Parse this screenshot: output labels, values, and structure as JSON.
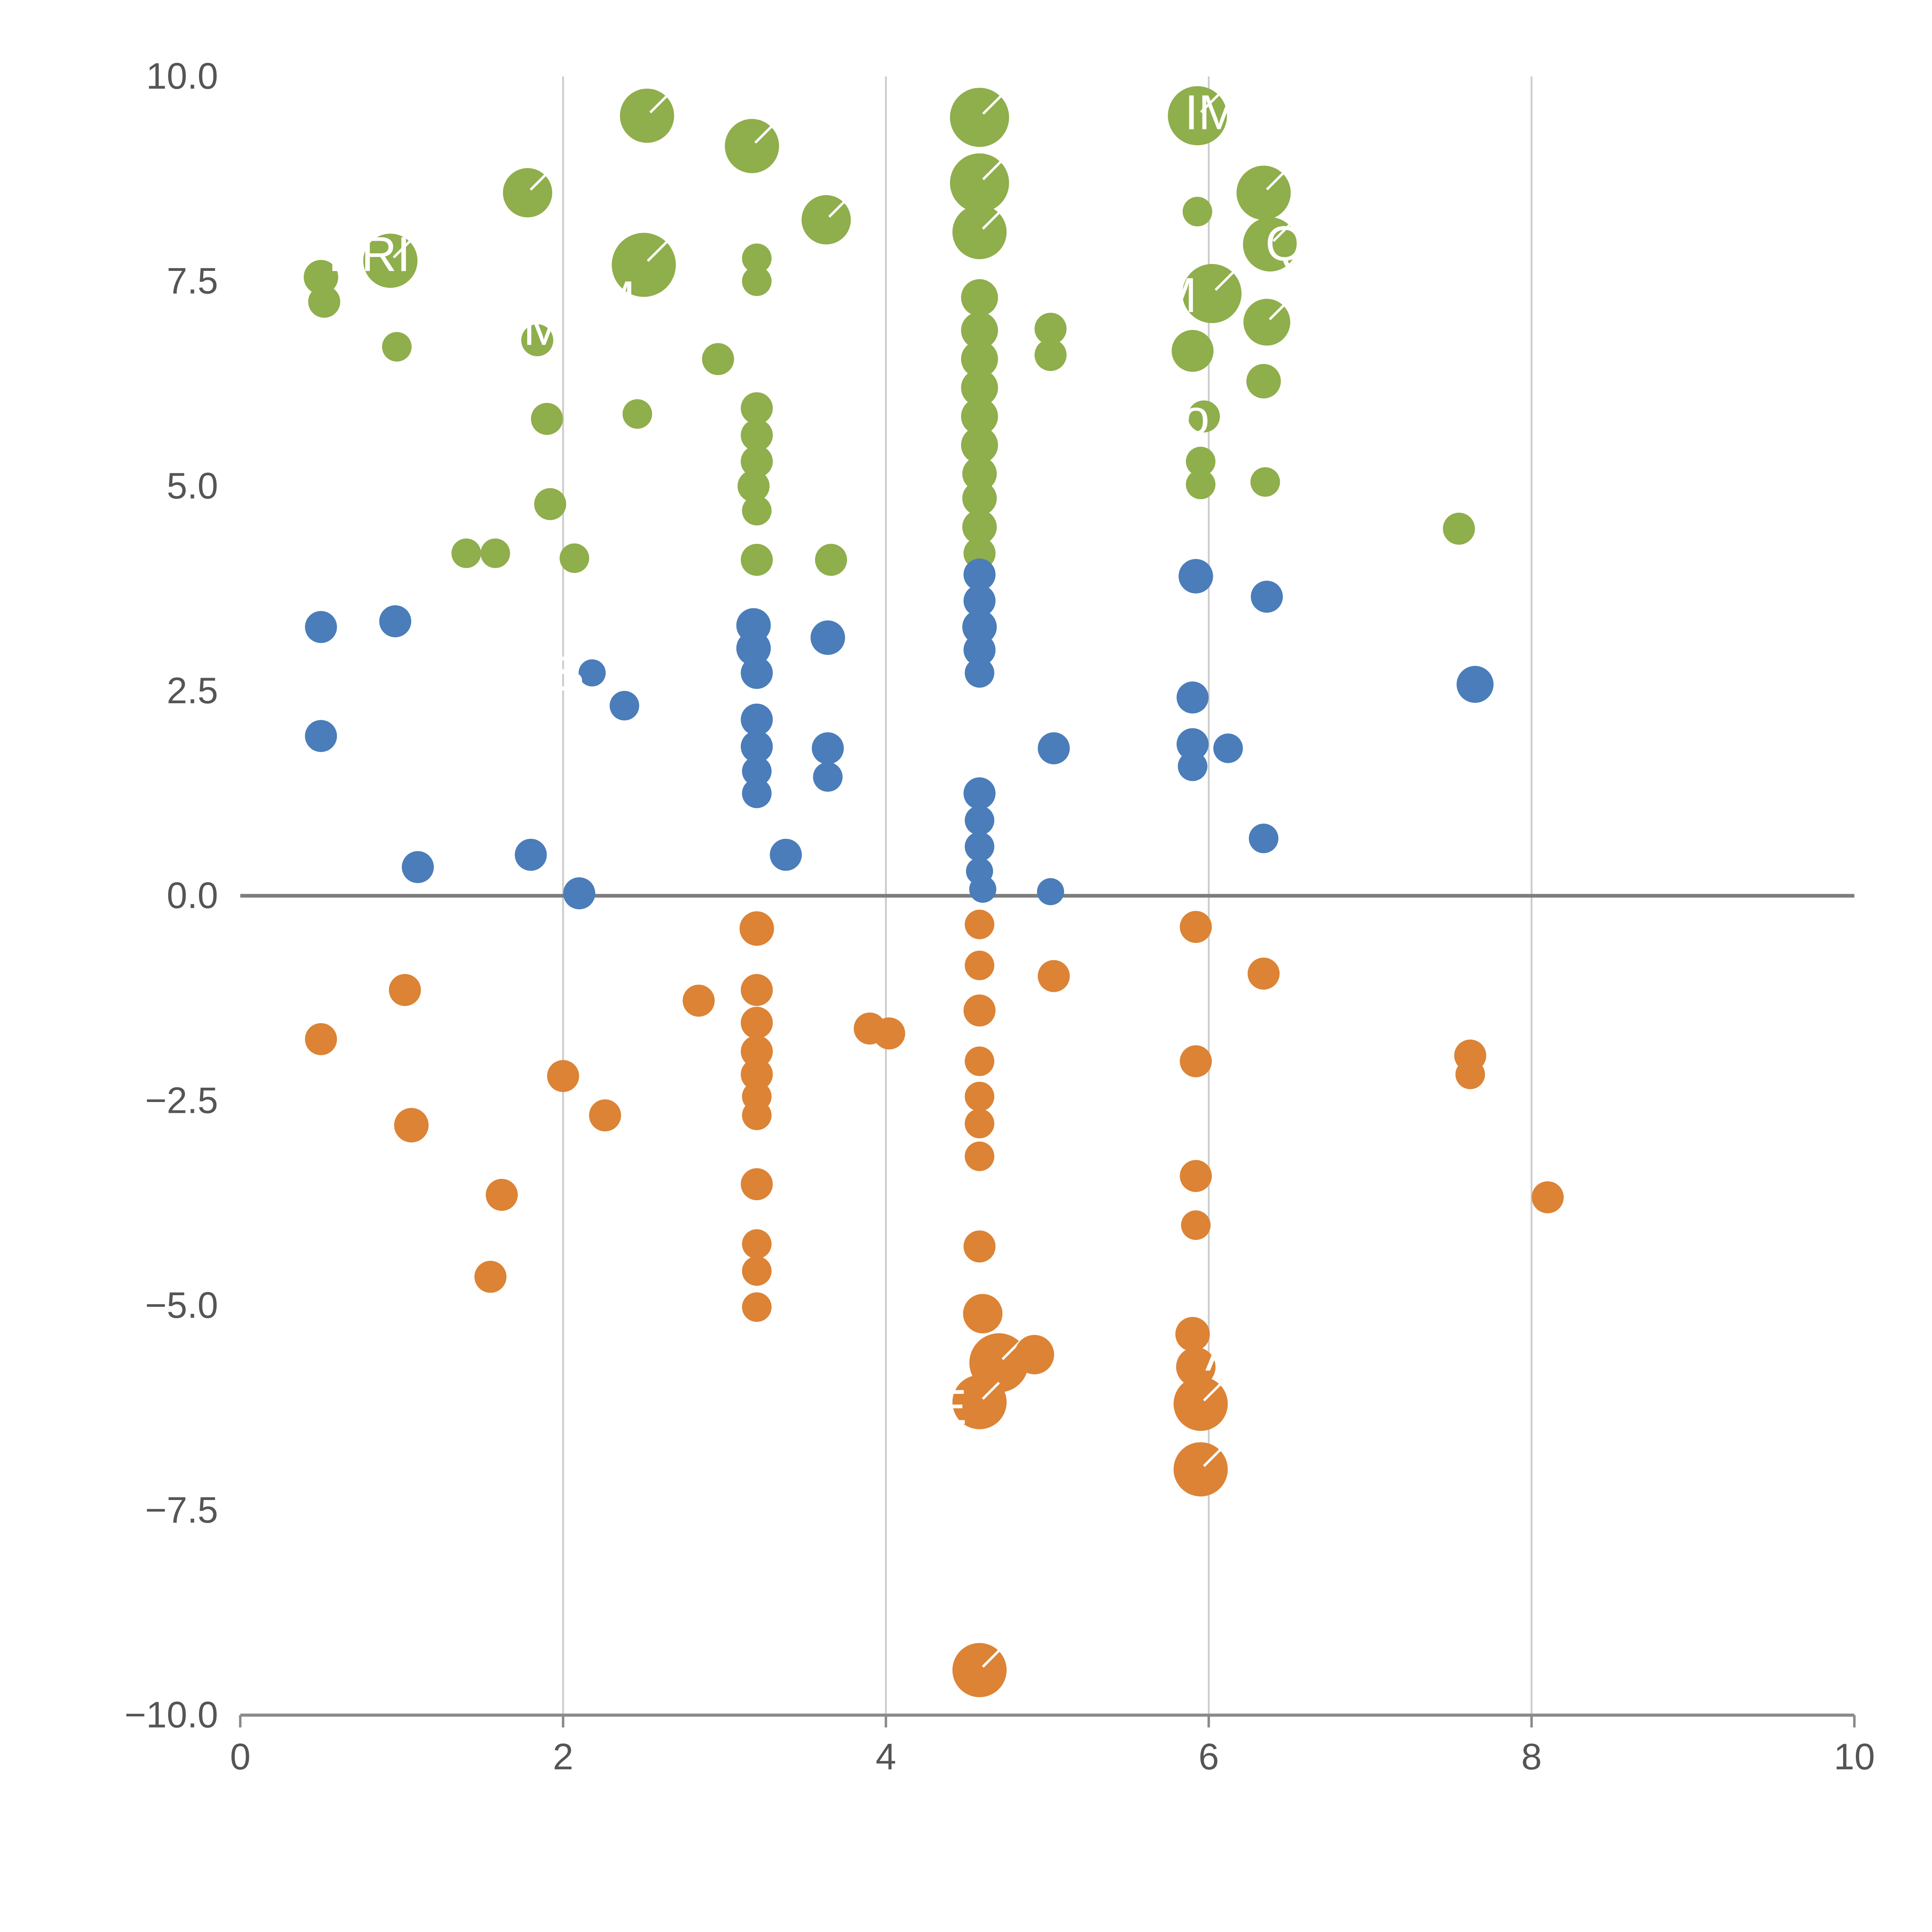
{
  "chart_data": {
    "type": "scatter",
    "title": "",
    "xlabel": "",
    "ylabel": "",
    "xlim": [
      0,
      10
    ],
    "ylim": [
      -10,
      10
    ],
    "x_ticks": [
      0,
      2,
      4,
      6,
      8,
      10
    ],
    "x_tick_labels": [
      "0",
      "2",
      "4",
      "6",
      "8",
      "10"
    ],
    "y_ticks": [
      -10,
      -7.5,
      -5,
      -2.5,
      0,
      2.5,
      5,
      7.5,
      10
    ],
    "y_tick_labels": [
      "−10.0",
      "−7.5",
      "−5.0",
      "−2.5",
      "0.0",
      "2.5",
      "5.0",
      "7.5",
      "10.0"
    ],
    "grid": {
      "vertical_x": [
        2,
        4,
        6,
        8
      ],
      "color": "#cccccc"
    },
    "zero_line": {
      "y": 0,
      "color": "#7d7d7d"
    },
    "axis_color": "#8a8a8a",
    "tick_label_color": "#555555",
    "annotation_color": "#ffffff",
    "legend": "none",
    "series": [
      {
        "name": "green",
        "color": "#8FAE4C",
        "points": [
          [
            0.5,
            7.55,
            14
          ],
          [
            0.52,
            7.25,
            13
          ],
          [
            0.93,
            7.75,
            22
          ],
          [
            0.97,
            6.7,
            12
          ],
          [
            1.78,
            8.58,
            20
          ],
          [
            1.84,
            6.78,
            13
          ],
          [
            1.9,
            5.82,
            13
          ],
          [
            1.92,
            4.78,
            13
          ],
          [
            1.4,
            4.18,
            12
          ],
          [
            1.58,
            4.18,
            12
          ],
          [
            2.07,
            4.12,
            12
          ],
          [
            2.52,
            9.52,
            22
          ],
          [
            2.5,
            7.7,
            26
          ],
          [
            2.46,
            5.88,
            12
          ],
          [
            2.96,
            6.55,
            13
          ],
          [
            3.17,
            9.15,
            22
          ],
          [
            3.2,
            7.78,
            12
          ],
          [
            3.2,
            7.5,
            12
          ],
          [
            3.2,
            5.95,
            13
          ],
          [
            3.2,
            5.62,
            13
          ],
          [
            3.2,
            5.3,
            13
          ],
          [
            3.18,
            5.0,
            13
          ],
          [
            3.2,
            4.7,
            12
          ],
          [
            3.2,
            4.1,
            13
          ],
          [
            3.63,
            8.25,
            20
          ],
          [
            3.66,
            4.1,
            13
          ],
          [
            4.58,
            9.5,
            24
          ],
          [
            4.58,
            8.7,
            24
          ],
          [
            4.58,
            8.1,
            22
          ],
          [
            4.58,
            7.3,
            15
          ],
          [
            4.58,
            6.9,
            15
          ],
          [
            4.58,
            6.55,
            15
          ],
          [
            4.58,
            6.2,
            15
          ],
          [
            4.58,
            5.85,
            15
          ],
          [
            4.58,
            5.5,
            15
          ],
          [
            4.58,
            5.15,
            14
          ],
          [
            4.58,
            4.85,
            14
          ],
          [
            4.58,
            4.5,
            14
          ],
          [
            4.58,
            4.18,
            13
          ],
          [
            5.02,
            6.92,
            13
          ],
          [
            5.02,
            6.6,
            13
          ],
          [
            5.93,
            9.52,
            24
          ],
          [
            5.93,
            8.35,
            12
          ],
          [
            6.02,
            7.35,
            24
          ],
          [
            5.9,
            6.65,
            17
          ],
          [
            5.97,
            5.85,
            13
          ],
          [
            5.95,
            5.3,
            12
          ],
          [
            5.95,
            5.02,
            12
          ],
          [
            6.34,
            8.58,
            22
          ],
          [
            6.38,
            7.95,
            22
          ],
          [
            6.36,
            7.0,
            19
          ],
          [
            6.34,
            6.28,
            14
          ],
          [
            6.35,
            5.05,
            12
          ],
          [
            7.55,
            4.48,
            13
          ]
        ]
      },
      {
        "name": "blue",
        "color": "#4A7DBA",
        "points": [
          [
            0.5,
            3.28,
            13
          ],
          [
            0.5,
            1.95,
            13
          ],
          [
            0.96,
            3.35,
            13
          ],
          [
            1.1,
            0.35,
            13
          ],
          [
            1.8,
            0.5,
            13
          ],
          [
            2.1,
            0.03,
            13
          ],
          [
            2.18,
            2.72,
            11
          ],
          [
            2.38,
            2.32,
            12
          ],
          [
            3.18,
            3.3,
            14
          ],
          [
            3.18,
            3.02,
            14
          ],
          [
            3.2,
            2.72,
            13
          ],
          [
            3.2,
            2.15,
            13
          ],
          [
            3.2,
            1.82,
            13
          ],
          [
            3.2,
            1.52,
            12
          ],
          [
            3.2,
            1.25,
            12
          ],
          [
            3.38,
            0.5,
            13
          ],
          [
            3.64,
            3.15,
            14
          ],
          [
            3.64,
            1.8,
            13
          ],
          [
            3.64,
            1.45,
            12
          ],
          [
            4.58,
            3.92,
            13
          ],
          [
            4.58,
            3.6,
            13
          ],
          [
            4.58,
            3.28,
            14
          ],
          [
            4.58,
            3.0,
            13
          ],
          [
            4.58,
            2.72,
            12
          ],
          [
            4.58,
            1.25,
            13
          ],
          [
            4.58,
            0.92,
            12
          ],
          [
            4.58,
            0.6,
            12
          ],
          [
            4.58,
            0.3,
            11
          ],
          [
            4.6,
            0.08,
            11
          ],
          [
            5.04,
            1.8,
            13
          ],
          [
            5.02,
            0.05,
            11
          ],
          [
            5.92,
            3.9,
            14
          ],
          [
            5.9,
            2.42,
            13
          ],
          [
            5.9,
            1.85,
            13
          ],
          [
            5.9,
            1.58,
            12
          ],
          [
            6.12,
            1.8,
            12
          ],
          [
            6.36,
            3.65,
            13
          ],
          [
            6.34,
            0.7,
            12
          ],
          [
            7.65,
            2.58,
            15
          ]
        ]
      },
      {
        "name": "orange",
        "color": "#DC8335",
        "points": [
          [
            0.5,
            -1.75,
            13
          ],
          [
            1.02,
            -1.15,
            13
          ],
          [
            1.06,
            -2.8,
            14
          ],
          [
            1.62,
            -3.65,
            13
          ],
          [
            1.55,
            -4.65,
            13
          ],
          [
            2.0,
            -2.2,
            13
          ],
          [
            2.26,
            -2.68,
            13
          ],
          [
            2.84,
            -1.28,
            13
          ],
          [
            3.2,
            -0.4,
            14
          ],
          [
            3.2,
            -1.15,
            13
          ],
          [
            3.2,
            -1.55,
            13
          ],
          [
            3.2,
            -1.9,
            13
          ],
          [
            3.2,
            -2.18,
            13
          ],
          [
            3.2,
            -2.45,
            12
          ],
          [
            3.2,
            -2.68,
            12
          ],
          [
            3.2,
            -3.52,
            13
          ],
          [
            3.2,
            -4.25,
            12
          ],
          [
            3.2,
            -4.58,
            12
          ],
          [
            3.2,
            -5.02,
            12
          ],
          [
            3.9,
            -1.62,
            13
          ],
          [
            4.02,
            -1.68,
            13
          ],
          [
            4.58,
            -0.35,
            12
          ],
          [
            4.58,
            -0.85,
            12
          ],
          [
            4.58,
            -1.4,
            13
          ],
          [
            4.58,
            -2.02,
            12
          ],
          [
            4.58,
            -2.45,
            12
          ],
          [
            4.58,
            -2.78,
            12
          ],
          [
            4.58,
            -3.18,
            12
          ],
          [
            4.58,
            -4.28,
            13
          ],
          [
            4.6,
            -5.1,
            16
          ],
          [
            4.7,
            -5.7,
            24
          ],
          [
            4.58,
            -6.18,
            22
          ],
          [
            4.92,
            -5.6,
            16
          ],
          [
            4.58,
            -9.45,
            22
          ],
          [
            5.04,
            -0.98,
            13
          ],
          [
            5.92,
            -0.38,
            13
          ],
          [
            5.92,
            -2.02,
            13
          ],
          [
            5.92,
            -3.42,
            13
          ],
          [
            5.92,
            -4.02,
            12
          ],
          [
            5.9,
            -5.35,
            14
          ],
          [
            5.92,
            -5.75,
            16
          ],
          [
            5.95,
            -6.2,
            22
          ],
          [
            5.95,
            -7.0,
            22
          ],
          [
            6.34,
            -0.95,
            13
          ],
          [
            7.62,
            -1.95,
            13
          ],
          [
            7.62,
            -2.18,
            12
          ],
          [
            8.1,
            -3.68,
            13
          ]
        ]
      }
    ],
    "annotations": [
      {
        "text": "IM",
        "x": 6.02,
        "y": 9.55
      },
      {
        "text": "ERI",
        "x": 0.8,
        "y": 7.82
      },
      {
        "text": "M",
        "x": 5.8,
        "y": 7.32
      },
      {
        "text": "Q",
        "x": 6.47,
        "y": 7.95
      },
      {
        "text": "o",
        "x": 5.92,
        "y": 5.83
      },
      {
        "text": "M",
        "x": 2.32,
        "y": 7.28
      },
      {
        "text": "M",
        "x": 1.88,
        "y": 6.92
      },
      {
        "text": "S",
        "x": 2.03,
        "y": 2.7
      },
      {
        "text": "E",
        "x": 4.4,
        "y": -6.25
      },
      {
        "text": "A",
        "x": 6.08,
        "y": -5.6
      }
    ]
  }
}
